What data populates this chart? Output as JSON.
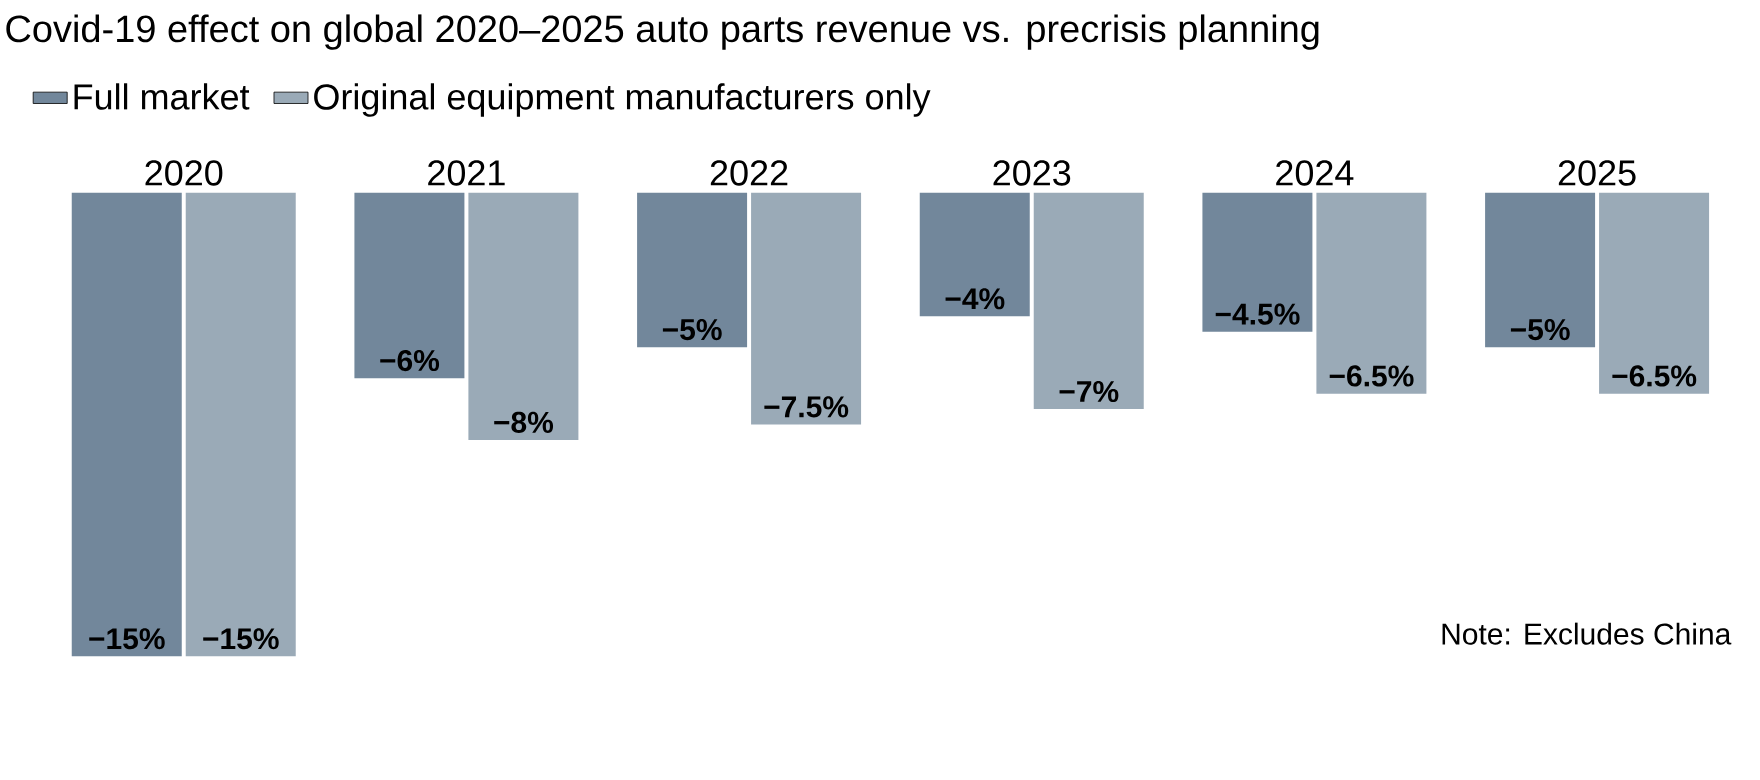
{
  "chart_data": {
    "type": "bar",
    "title": "Covid-19 effect on global 2020–2025 auto parts revenue vs. precrisis planning",
    "categories": [
      "2020",
      "2021",
      "2022",
      "2023",
      "2024",
      "2025"
    ],
    "series": [
      {
        "name": "Full market",
        "color": "#72879b",
        "values": [
          -15,
          -6,
          -5,
          -4,
          -4.5,
          -5
        ],
        "value_labels": [
          "−15%",
          "−6%",
          "−5%",
          "−4%",
          "−4.5%",
          "−5%"
        ]
      },
      {
        "name": "Original equipment manufacturers only",
        "color": "#9aaab7",
        "values": [
          -15,
          -8,
          -7.5,
          -7,
          -6.5,
          -6.5
        ],
        "value_labels": [
          "−15%",
          "−8%",
          "−7.5%",
          "−7%",
          "−6.5%",
          "−6.5%"
        ]
      }
    ],
    "legend": "top left",
    "annotations": [
      "Note: Excludes China"
    ]
  }
}
